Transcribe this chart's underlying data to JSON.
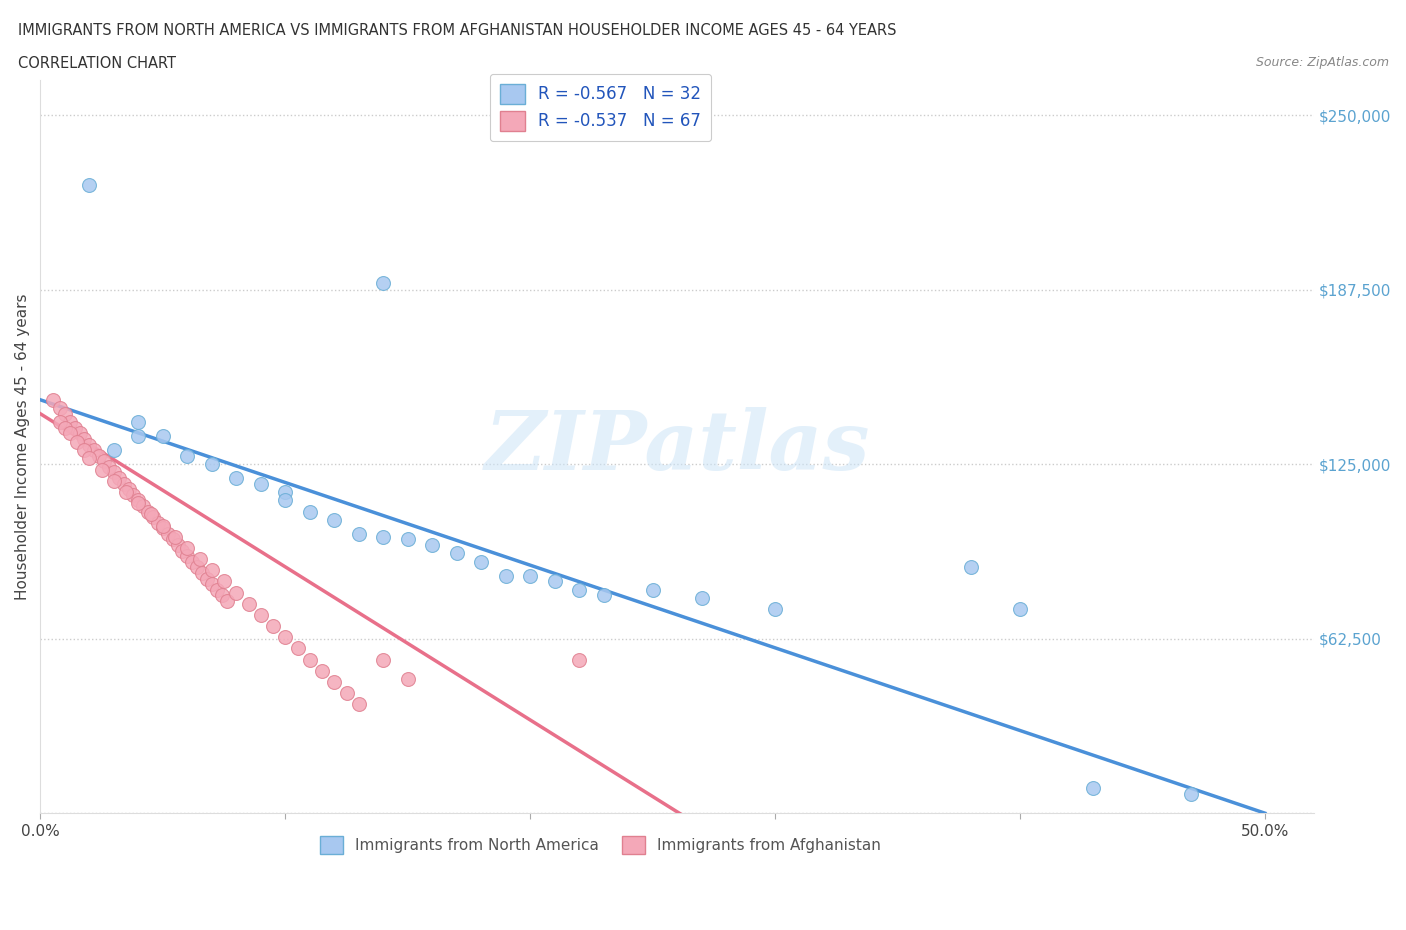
{
  "title_line1": "IMMIGRANTS FROM NORTH AMERICA VS IMMIGRANTS FROM AFGHANISTAN HOUSEHOLDER INCOME AGES 45 - 64 YEARS",
  "title_line2": "CORRELATION CHART",
  "source": "Source: ZipAtlas.com",
  "ylabel": "Householder Income Ages 45 - 64 years",
  "xlim": [
    0.0,
    0.52
  ],
  "ylim": [
    0,
    262500
  ],
  "yticks": [
    0,
    62500,
    125000,
    187500,
    250000
  ],
  "ytick_labels_right": [
    "",
    "$62,500",
    "$125,000",
    "$187,500",
    "$250,000"
  ],
  "xticks": [
    0.0,
    0.1,
    0.2,
    0.3,
    0.4,
    0.5
  ],
  "xtick_labels": [
    "0.0%",
    "",
    "",
    "",
    "",
    "50.0%"
  ],
  "watermark": "ZIPatlas",
  "color_na": "#a8c8f0",
  "color_af": "#f4a8b8",
  "edge_na": "#6aaed6",
  "edge_af": "#e08090",
  "color_line_na": "#4a90d9",
  "color_line_af": "#e8708a",
  "na_line_x": [
    0.0,
    0.5
  ],
  "na_line_y": [
    148000,
    0
  ],
  "af_line_x": [
    0.0,
    0.27
  ],
  "af_line_y": [
    143000,
    -5000
  ],
  "scatter_na_x": [
    0.02,
    0.14,
    0.03,
    0.04,
    0.04,
    0.05,
    0.06,
    0.07,
    0.08,
    0.09,
    0.1,
    0.1,
    0.11,
    0.12,
    0.13,
    0.14,
    0.15,
    0.16,
    0.17,
    0.18,
    0.19,
    0.2,
    0.21,
    0.22,
    0.23,
    0.25,
    0.27,
    0.3,
    0.38,
    0.4,
    0.43,
    0.47
  ],
  "scatter_na_y": [
    225000,
    190000,
    130000,
    140000,
    135000,
    135000,
    128000,
    125000,
    120000,
    118000,
    115000,
    112000,
    108000,
    105000,
    100000,
    99000,
    98000,
    96000,
    93000,
    90000,
    85000,
    85000,
    83000,
    80000,
    78000,
    80000,
    77000,
    73000,
    88000,
    73000,
    9000,
    7000
  ],
  "scatter_af_x": [
    0.005,
    0.008,
    0.01,
    0.012,
    0.014,
    0.016,
    0.018,
    0.02,
    0.022,
    0.024,
    0.026,
    0.028,
    0.03,
    0.032,
    0.034,
    0.036,
    0.038,
    0.04,
    0.042,
    0.044,
    0.046,
    0.048,
    0.05,
    0.052,
    0.054,
    0.056,
    0.058,
    0.06,
    0.062,
    0.064,
    0.066,
    0.068,
    0.07,
    0.072,
    0.074,
    0.076,
    0.008,
    0.01,
    0.012,
    0.015,
    0.018,
    0.02,
    0.025,
    0.03,
    0.035,
    0.04,
    0.045,
    0.05,
    0.055,
    0.06,
    0.065,
    0.07,
    0.075,
    0.08,
    0.085,
    0.09,
    0.095,
    0.1,
    0.105,
    0.11,
    0.115,
    0.12,
    0.125,
    0.13,
    0.14,
    0.15,
    0.22
  ],
  "scatter_af_y": [
    148000,
    145000,
    143000,
    140000,
    138000,
    136000,
    134000,
    132000,
    130000,
    128000,
    126000,
    124000,
    122000,
    120000,
    118000,
    116000,
    114000,
    112000,
    110000,
    108000,
    106000,
    104000,
    102000,
    100000,
    98000,
    96000,
    94000,
    92000,
    90000,
    88000,
    86000,
    84000,
    82000,
    80000,
    78000,
    76000,
    140000,
    138000,
    136000,
    133000,
    130000,
    127000,
    123000,
    119000,
    115000,
    111000,
    107000,
    103000,
    99000,
    95000,
    91000,
    87000,
    83000,
    79000,
    75000,
    71000,
    67000,
    63000,
    59000,
    55000,
    51000,
    47000,
    43000,
    39000,
    55000,
    48000,
    55000
  ]
}
